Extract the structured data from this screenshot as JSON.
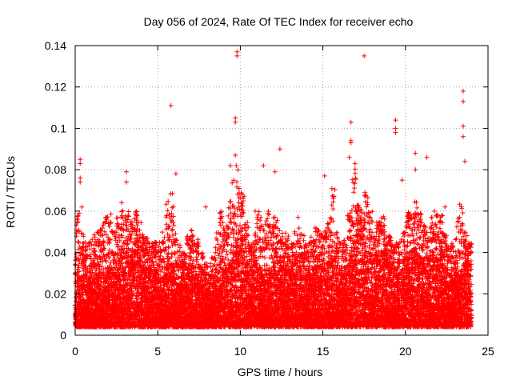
{
  "chart_data": {
    "type": "scatter",
    "title": "Day 056 of 2024, Rate Of TEC Index for receiver echo",
    "xlabel": "GPS time / hours",
    "ylabel": "ROTI / TECUs",
    "xlim": [
      0,
      25
    ],
    "ylim": [
      0,
      0.14
    ],
    "x_ticks": [
      0,
      5,
      10,
      15,
      20,
      25
    ],
    "x_tick_labels": [
      "0",
      "5",
      "10",
      "15",
      "20",
      "25"
    ],
    "y_ticks": [
      0,
      0.02,
      0.04,
      0.06,
      0.08,
      0.1,
      0.12,
      0.14
    ],
    "y_tick_labels": [
      "0",
      "0.02",
      "0.04",
      "0.06",
      "0.08",
      "0.1",
      "0.12",
      "0.14"
    ],
    "grid": true,
    "marker": "+",
    "marker_color": "#ff0000",
    "x_range_of_data": [
      0,
      24
    ],
    "notable_points": [
      {
        "x": 9.8,
        "y": 0.137
      },
      {
        "x": 9.8,
        "y": 0.135
      },
      {
        "x": 17.5,
        "y": 0.135
      },
      {
        "x": 23.5,
        "y": 0.118
      },
      {
        "x": 23.5,
        "y": 0.113
      },
      {
        "x": 5.8,
        "y": 0.111
      },
      {
        "x": 9.7,
        "y": 0.105
      },
      {
        "x": 9.7,
        "y": 0.103
      },
      {
        "x": 19.4,
        "y": 0.104
      },
      {
        "x": 19.4,
        "y": 0.1
      },
      {
        "x": 19.4,
        "y": 0.098
      },
      {
        "x": 16.7,
        "y": 0.103
      },
      {
        "x": 23.5,
        "y": 0.101
      },
      {
        "x": 23.5,
        "y": 0.096
      },
      {
        "x": 16.7,
        "y": 0.094
      },
      {
        "x": 16.7,
        "y": 0.093
      },
      {
        "x": 12.4,
        "y": 0.09
      },
      {
        "x": 20.6,
        "y": 0.088
      },
      {
        "x": 9.7,
        "y": 0.087
      },
      {
        "x": 16.6,
        "y": 0.086
      },
      {
        "x": 21.3,
        "y": 0.086
      },
      {
        "x": 0.3,
        "y": 0.085
      },
      {
        "x": 0.3,
        "y": 0.083
      },
      {
        "x": 23.6,
        "y": 0.084
      },
      {
        "x": 9.4,
        "y": 0.082
      },
      {
        "x": 11.4,
        "y": 0.082
      },
      {
        "x": 20.6,
        "y": 0.08
      },
      {
        "x": 3.1,
        "y": 0.079
      },
      {
        "x": 12.1,
        "y": 0.079
      },
      {
        "x": 6.1,
        "y": 0.078
      },
      {
        "x": 15.1,
        "y": 0.077
      },
      {
        "x": 0.3,
        "y": 0.076
      },
      {
        "x": 0.3,
        "y": 0.074
      },
      {
        "x": 19.8,
        "y": 0.075
      },
      {
        "x": 3.1,
        "y": 0.074
      },
      {
        "x": 7.9,
        "y": 0.062
      },
      {
        "x": 0.4,
        "y": 0.062
      },
      {
        "x": 10.9,
        "y": 0.06
      },
      {
        "x": 22.4,
        "y": 0.062
      },
      {
        "x": 13.5,
        "y": 0.057
      }
    ],
    "envelope": {
      "x_step_hours": 0.25,
      "dense_band_upper": [
        0.035,
        0.03,
        0.034,
        0.028,
        0.031,
        0.033,
        0.038,
        0.03,
        0.035,
        0.032,
        0.036,
        0.04,
        0.042,
        0.038,
        0.045,
        0.04,
        0.038,
        0.036,
        0.033,
        0.034,
        0.028,
        0.03,
        0.038,
        0.035,
        0.028,
        0.03,
        0.032,
        0.034,
        0.036,
        0.03,
        0.028,
        0.024,
        0.022,
        0.025,
        0.03,
        0.038,
        0.034,
        0.035,
        0.04,
        0.045,
        0.048,
        0.038,
        0.032,
        0.035,
        0.035,
        0.03,
        0.032,
        0.03,
        0.04,
        0.036,
        0.034,
        0.032,
        0.032,
        0.034,
        0.035,
        0.034,
        0.03,
        0.032,
        0.036,
        0.035,
        0.034,
        0.035,
        0.038,
        0.034,
        0.03,
        0.03,
        0.038,
        0.046,
        0.05,
        0.048,
        0.045,
        0.04,
        0.036,
        0.04,
        0.042,
        0.038,
        0.036,
        0.032,
        0.03,
        0.032,
        0.038,
        0.04,
        0.042,
        0.038,
        0.036,
        0.036,
        0.04,
        0.038,
        0.042,
        0.034,
        0.03,
        0.028,
        0.03,
        0.032,
        0.035,
        0.038
      ],
      "sparse_upper": [
        0.06,
        0.05,
        0.048,
        0.045,
        0.05,
        0.05,
        0.055,
        0.058,
        0.06,
        0.05,
        0.058,
        0.065,
        0.06,
        0.055,
        0.06,
        0.055,
        0.05,
        0.048,
        0.045,
        0.045,
        0.045,
        0.05,
        0.066,
        0.07,
        0.05,
        0.045,
        0.04,
        0.048,
        0.052,
        0.048,
        0.04,
        0.035,
        0.035,
        0.04,
        0.05,
        0.062,
        0.055,
        0.065,
        0.075,
        0.085,
        0.07,
        0.055,
        0.045,
        0.05,
        0.06,
        0.055,
        0.06,
        0.055,
        0.06,
        0.055,
        0.05,
        0.048,
        0.045,
        0.05,
        0.052,
        0.05,
        0.045,
        0.048,
        0.052,
        0.05,
        0.055,
        0.06,
        0.072,
        0.05,
        0.045,
        0.048,
        0.06,
        0.085,
        0.065,
        0.062,
        0.07,
        0.06,
        0.05,
        0.055,
        0.058,
        0.05,
        0.048,
        0.045,
        0.045,
        0.05,
        0.06,
        0.06,
        0.065,
        0.06,
        0.055,
        0.05,
        0.058,
        0.06,
        0.058,
        0.05,
        0.045,
        0.045,
        0.06,
        0.065,
        0.05,
        0.045
      ]
    }
  }
}
